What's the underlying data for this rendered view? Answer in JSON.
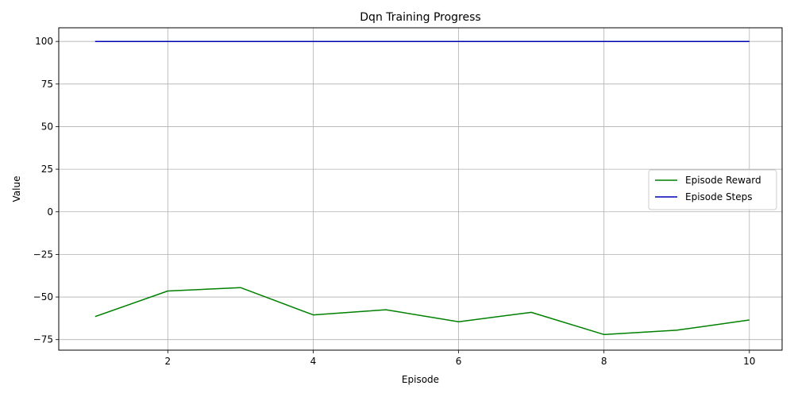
{
  "chart_data": {
    "type": "line",
    "title": "Dqn Training Progress",
    "xlabel": "Episode",
    "ylabel": "Value",
    "x": [
      1,
      2,
      3,
      4,
      5,
      6,
      7,
      8,
      9,
      10
    ],
    "xlim": [
      0.5,
      10.45
    ],
    "ylim": [
      -81.2,
      108
    ],
    "xticks": [
      2,
      4,
      6,
      8,
      10
    ],
    "yticks": [
      -75,
      -50,
      -25,
      0,
      25,
      50,
      75,
      100
    ],
    "grid": true,
    "legend_position": "center-right",
    "series": [
      {
        "name": "Episode Reward",
        "color": "#008000",
        "values": [
          -61.5,
          -46.5,
          -44.5,
          -60.5,
          -57.5,
          -64.5,
          -59,
          -72,
          -69.5,
          -63.5
        ]
      },
      {
        "name": "Episode Steps",
        "color": "#0000b3",
        "values": [
          100,
          100,
          100,
          100,
          100,
          100,
          100,
          100,
          100,
          100
        ]
      }
    ]
  }
}
